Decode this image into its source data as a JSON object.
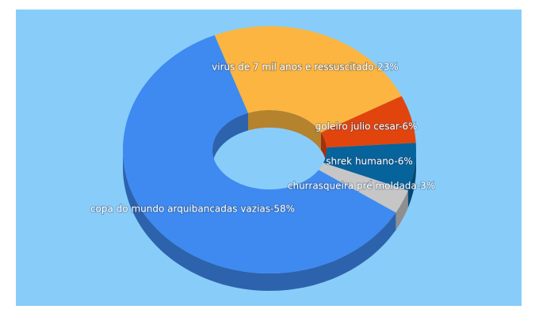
{
  "chart_data": {
    "type": "donut3d",
    "categories": [
      "virus de 7 mil anos e ressuscitado-23%",
      "goleiro julio cesar-6%",
      "shrek humano-6%",
      "churrasqueira pré moldada-3%",
      "copa do mundo arquibancadas vazias-58%"
    ],
    "values": [
      23,
      6,
      6,
      3,
      58
    ],
    "colors": [
      "#fbb540",
      "#e2440d",
      "#06639c",
      "#c6c6c6",
      "#3f8af0"
    ]
  }
}
